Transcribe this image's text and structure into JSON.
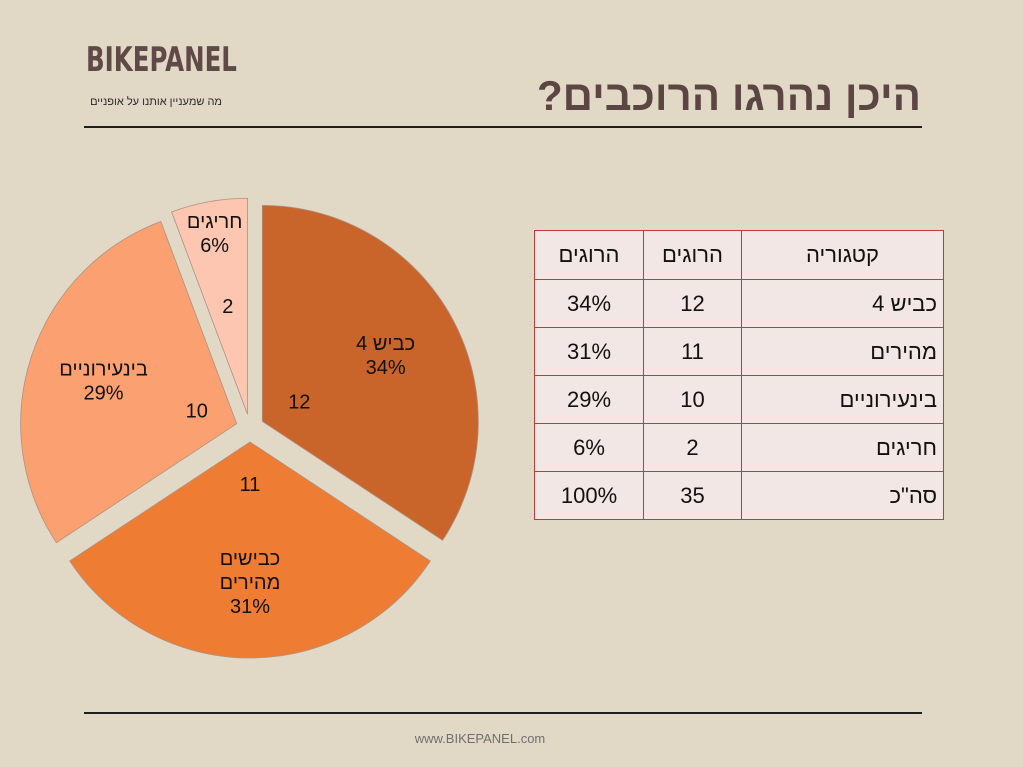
{
  "header": {
    "logo": "BIKEPANEL",
    "tagline": "מה שמעניין אותנו על אופניים",
    "title": "היכן נהרגו הרוכבים?"
  },
  "footer": {
    "url": "www.BIKEPANEL.com"
  },
  "chart_data": {
    "type": "pie",
    "categories": [
      "כביש 4",
      "כבישים מהירים",
      "בינעירוניים",
      "חריגים"
    ],
    "label_lines": [
      [
        "כביש 4",
        "34%"
      ],
      [
        "כבישים",
        "מהירים",
        "31%"
      ],
      [
        "בינעירוניים",
        "29%"
      ],
      [
        "חריגים",
        "6%"
      ]
    ],
    "values": [
      12,
      11,
      10,
      2
    ],
    "percents": [
      "34%",
      "31%",
      "29%",
      "6%"
    ],
    "colors": [
      "#c9652a",
      "#ee7d33",
      "#fba070",
      "#fcc6b0"
    ],
    "exploded": true
  },
  "table": {
    "headers": [
      "קטגוריה",
      "הרוגים",
      "הרוגים"
    ],
    "rows": [
      [
        "כביש 4",
        "12",
        "34%"
      ],
      [
        "מהירים",
        "11",
        "31%"
      ],
      [
        "בינעירוניים",
        "10",
        "29%"
      ],
      [
        "חריגים",
        "2",
        "6%"
      ],
      [
        "סה\"כ",
        "35",
        "100%"
      ]
    ]
  }
}
